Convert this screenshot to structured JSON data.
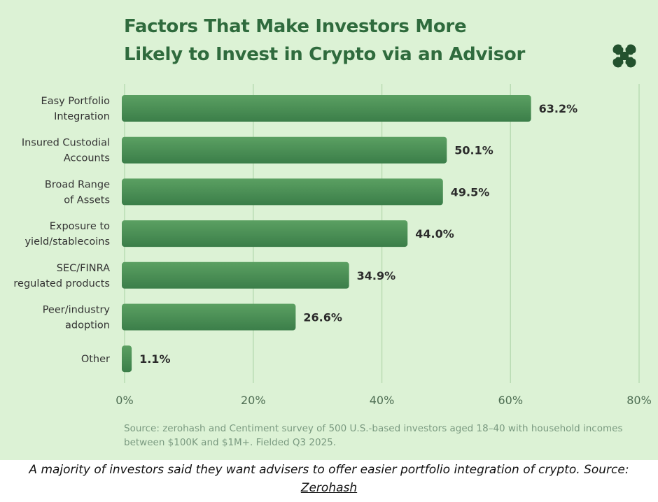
{
  "chart": {
    "title_lines": [
      "Factors That Make Investors More",
      "Likely to Invest in Crypto via an Advisor"
    ],
    "source_note": "Source: zerohash and Centiment survey of 500 U.S.-based investors aged 18–40 with household incomes between $100K and $1M+. Fielded Q3 2025.",
    "logo_icon": "zerohash-logo-icon"
  },
  "chart_data": {
    "type": "bar",
    "orientation": "horizontal",
    "title": "Factors That Make Investors More Likely to Invest in Crypto via an Advisor",
    "categories": [
      [
        "Easy Portfolio",
        "Integration"
      ],
      [
        "Insured Custodial",
        "Accounts"
      ],
      [
        "Broad Range",
        "of Assets"
      ],
      [
        "Exposure to",
        "yield/stablecoins"
      ],
      [
        "SEC/FINRA",
        "regulated products"
      ],
      [
        "Peer/industry",
        "adoption"
      ],
      [
        "Other"
      ]
    ],
    "values": [
      63.2,
      50.1,
      49.5,
      44.0,
      34.9,
      26.6,
      1.1
    ],
    "value_labels": [
      "63.2%",
      "50.1%",
      "49.5%",
      "44.0%",
      "34.9%",
      "26.6%",
      "1.1%"
    ],
    "xlim": [
      0,
      80
    ],
    "x_ticks": [
      0,
      20,
      40,
      60,
      80
    ],
    "x_tick_labels": [
      "0%",
      "20%",
      "40%",
      "60%",
      "80%"
    ],
    "grid": "vertical",
    "colors": {
      "bar_top": "#5ba062",
      "bar_bottom": "#3b7e49",
      "grid": "#b9dcb3",
      "background": "#dcf2d5",
      "title": "#2f6b3d",
      "text": "#333333",
      "axis_text": "#4e6e53"
    }
  },
  "caption": {
    "text": "A majority of investors said they want advisers to offer easier portfolio integration of crypto. Source:",
    "link_text": "Zerohash"
  }
}
